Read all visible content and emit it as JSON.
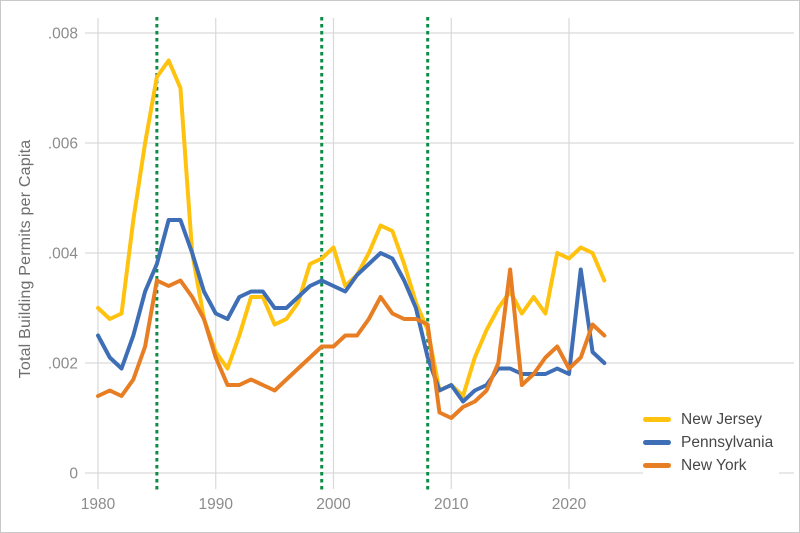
{
  "chart_data": {
    "type": "line",
    "title": "",
    "xlabel": "",
    "ylabel": "Total Building Permits per Capita",
    "grid": true,
    "legend_position": "lower right",
    "xlim": [
      1980,
      2023
    ],
    "ylim": [
      0,
      0.008
    ],
    "x": [
      1980,
      1981,
      1982,
      1983,
      1984,
      1985,
      1986,
      1987,
      1988,
      1989,
      1990,
      1991,
      1992,
      1993,
      1994,
      1995,
      1996,
      1997,
      1998,
      1999,
      2000,
      2001,
      2002,
      2003,
      2004,
      2005,
      2006,
      2007,
      2008,
      2009,
      2010,
      2011,
      2012,
      2013,
      2014,
      2015,
      2016,
      2017,
      2018,
      2019,
      2020,
      2021,
      2022,
      2023
    ],
    "series": [
      {
        "name": "New Jersey",
        "color": "#FFC20E",
        "values": [
          0.003,
          0.0028,
          0.0029,
          0.0046,
          0.006,
          0.0072,
          0.0075,
          0.007,
          0.004,
          0.0028,
          0.0022,
          0.0019,
          0.0025,
          0.0032,
          0.0032,
          0.0027,
          0.0028,
          0.0031,
          0.0038,
          0.0039,
          0.0041,
          0.0034,
          0.0036,
          0.004,
          0.0045,
          0.0044,
          0.0038,
          0.0031,
          0.0026,
          0.0015,
          0.0016,
          0.0014,
          0.0021,
          0.0026,
          0.003,
          0.0033,
          0.0029,
          0.0032,
          0.0029,
          0.004,
          0.0039,
          0.0041,
          0.004,
          0.0035
        ]
      },
      {
        "name": "Pennsylvania",
        "color": "#3E6EB6",
        "values": [
          0.0025,
          0.0021,
          0.0019,
          0.0025,
          0.0033,
          0.0038,
          0.0046,
          0.0046,
          0.004,
          0.0033,
          0.0029,
          0.0028,
          0.0032,
          0.0033,
          0.0033,
          0.003,
          0.003,
          0.0032,
          0.0034,
          0.0035,
          0.0034,
          0.0033,
          0.0036,
          0.0038,
          0.004,
          0.0039,
          0.0035,
          0.003,
          0.0021,
          0.0015,
          0.0016,
          0.0013,
          0.0015,
          0.0016,
          0.0019,
          0.0019,
          0.0018,
          0.0018,
          0.0018,
          0.0019,
          0.0018,
          0.0037,
          0.0022,
          0.002
        ]
      },
      {
        "name": "New York",
        "color": "#E87E23",
        "values": [
          0.0014,
          0.0015,
          0.0014,
          0.0017,
          0.0023,
          0.0035,
          0.0034,
          0.0035,
          0.0032,
          0.0028,
          0.0021,
          0.0016,
          0.0016,
          0.0017,
          0.0016,
          0.0015,
          0.0017,
          0.0019,
          0.0021,
          0.0023,
          0.0023,
          0.0025,
          0.0025,
          0.0028,
          0.0032,
          0.0029,
          0.0028,
          0.0028,
          0.0027,
          0.0011,
          0.001,
          0.0012,
          0.0013,
          0.0015,
          0.002,
          0.0037,
          0.0016,
          0.0018,
          0.0021,
          0.0023,
          0.0019,
          0.0021,
          0.0027,
          0.0025
        ]
      }
    ],
    "y_ticks": [
      {
        "label": "0",
        "value": 0
      },
      {
        "label": ".002",
        "value": 0.002
      },
      {
        "label": ".004",
        "value": 0.004
      },
      {
        "label": ".006",
        "value": 0.006
      },
      {
        "label": ".008",
        "value": 0.008
      }
    ],
    "x_ticks": [
      {
        "label": "1980",
        "value": 1980
      },
      {
        "label": "1990",
        "value": 1990
      },
      {
        "label": "2000",
        "value": 2000
      },
      {
        "label": "2010",
        "value": 2010
      },
      {
        "label": "2020",
        "value": 2020
      }
    ],
    "vlines": {
      "years": [
        1985,
        1999,
        2008
      ],
      "color": "#0E8C46",
      "style": "dashed"
    }
  }
}
